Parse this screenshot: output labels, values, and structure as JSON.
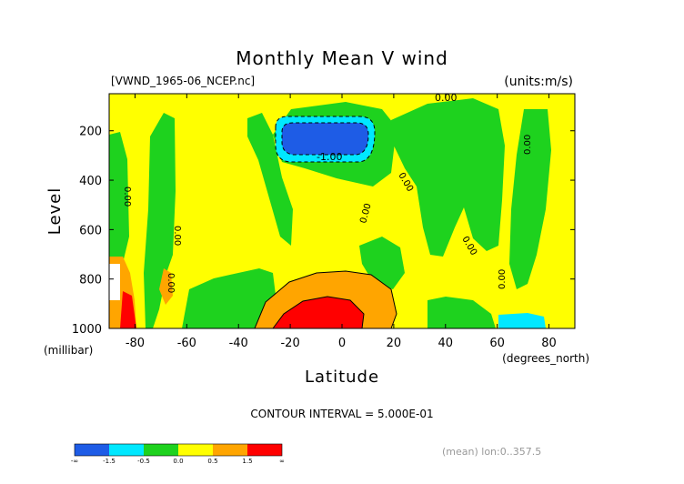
{
  "chart_data": {
    "type": "heatmap",
    "title": "Monthly Mean V wind",
    "file_label": "[VWND_1965-06_NCEP.nc]",
    "units_label": "(units:m/s)",
    "xlabel": "Latitude",
    "x_units": "(degrees_north)",
    "ylabel": "Level",
    "y_units": "(millibar)",
    "xlim": [
      -90,
      90
    ],
    "ylim": [
      1000,
      50
    ],
    "x_ticks": [
      -80,
      -60,
      -40,
      -20,
      0,
      20,
      40,
      60,
      80
    ],
    "y_ticks": [
      200,
      400,
      600,
      800,
      1000
    ],
    "contour_interval": "CONTOUR INTERVAL = 5.000E-01",
    "footer_note": "(mean) lon:0..357.5",
    "contour_labels": [
      "0.00",
      "-1.00"
    ],
    "colorbar": {
      "bins": [
        {
          "range": "< -1.5",
          "color": "#1e5ce6"
        },
        {
          "range": "-1.5 to -0.5",
          "color": "#00e8ff"
        },
        {
          "range": "-0.5 to 0.0",
          "color": "#1ed21e"
        },
        {
          "range": "0.0 to 0.5",
          "color": "#ffff00"
        },
        {
          "range": "0.5 to 1.5",
          "color": "#ffa500"
        },
        {
          "range": "> 1.5",
          "color": "#ff0000"
        }
      ],
      "tick_labels": [
        "-∞",
        "-1.5",
        "-0.5",
        "0.0",
        "0.5",
        "1.5",
        "∞"
      ]
    },
    "features": [
      {
        "name": "negative core (upper troposphere)",
        "lat_range": [
          -22,
          12
        ],
        "level_range": [
          130,
          240
        ],
        "value_min": -1.5
      },
      {
        "name": "positive core (near surface)",
        "lat_range": [
          -25,
          10
        ],
        "level_range": [
          820,
          1000
        ],
        "value_max": 1.5
      },
      {
        "name": "positive core (Antarctic surface)",
        "lat_range": [
          -90,
          -82
        ],
        "level_range": [
          850,
          1000
        ],
        "value_max": 1.5
      }
    ]
  }
}
